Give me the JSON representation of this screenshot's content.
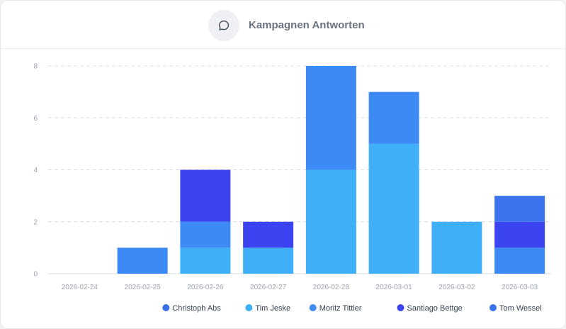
{
  "header": {
    "title": "Kampagnen Antworten",
    "icon": "chat-bubble-icon"
  },
  "chart_data": {
    "type": "bar",
    "stacked": true,
    "title": "Kampagnen Antworten",
    "xlabel": "",
    "ylabel": "",
    "ylim": [
      0,
      8
    ],
    "yticks": [
      0,
      2,
      4,
      6,
      8
    ],
    "grid": true,
    "legend_position": "bottom-right",
    "categories": [
      "2026-02-24",
      "2026-02-25",
      "2026-02-26",
      "2026-02-27",
      "2026-02-28",
      "2026-03-01",
      "2026-03-02",
      "2026-03-03"
    ],
    "series": [
      {
        "name": "Christoph Abs",
        "color": "#3b6fe6",
        "values": [
          0,
          0,
          0,
          0,
          0,
          0,
          0,
          0
        ]
      },
      {
        "name": "Tim Jeske",
        "color": "#3fb0f7",
        "values": [
          0,
          0,
          1,
          1,
          4,
          5,
          2,
          0
        ]
      },
      {
        "name": "Moritz Tittler",
        "color": "#3d8af5",
        "values": [
          0,
          1,
          1,
          0,
          4,
          2,
          0,
          1
        ]
      },
      {
        "name": "Santiago Bettge",
        "color": "#3c44f2",
        "values": [
          0,
          0,
          2,
          1,
          0,
          0,
          0,
          1
        ]
      },
      {
        "name": "Tom Wessel",
        "color": "#3b74ec",
        "values": [
          0,
          0,
          0,
          0,
          0,
          0,
          0,
          1
        ]
      }
    ]
  }
}
